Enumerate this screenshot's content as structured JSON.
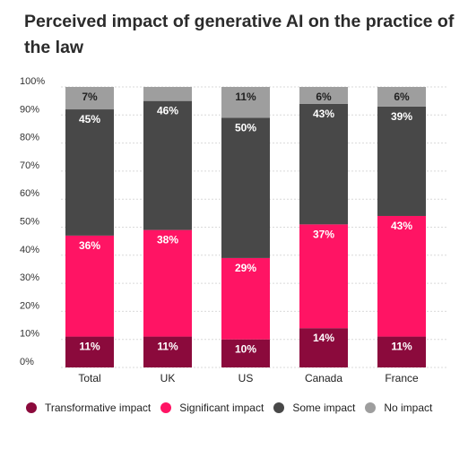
{
  "title": "Perceived impact of generative AI on the practice of the law",
  "colors": {
    "transformative": "#8b0a3c",
    "significant": "#ff1464",
    "some": "#484848",
    "none": "#9e9e9e"
  },
  "chart_data": {
    "type": "bar",
    "stacked": true,
    "categories": [
      "Total",
      "UK",
      "US",
      "Canada",
      "France"
    ],
    "ylim": [
      0,
      100
    ],
    "yticks": [
      "0%",
      "10%",
      "20%",
      "30%",
      "40%",
      "50%",
      "60%",
      "70%",
      "80%",
      "90%",
      "100%"
    ],
    "grid": true,
    "legend_position": "bottom",
    "series": [
      {
        "name": "Transformative impact",
        "color_key": "transformative",
        "values": [
          11,
          11,
          10,
          14,
          11
        ],
        "labels": [
          "11%",
          "11%",
          "10%",
          "14%",
          "11%"
        ]
      },
      {
        "name": "Significant impact",
        "color_key": "significant",
        "values": [
          36,
          38,
          29,
          37,
          43
        ],
        "labels": [
          "36%",
          "38%",
          "29%",
          "37%",
          "43%"
        ]
      },
      {
        "name": "Some impact",
        "color_key": "some",
        "values": [
          45,
          46,
          50,
          43,
          39
        ],
        "labels": [
          "45%",
          "46%",
          "50%",
          "43%",
          "39%"
        ]
      },
      {
        "name": "No impact",
        "color_key": "none",
        "values": [
          7,
          5,
          11,
          6,
          6
        ],
        "labels": [
          "7%",
          "",
          "11%",
          "6%",
          "6%"
        ]
      }
    ]
  }
}
